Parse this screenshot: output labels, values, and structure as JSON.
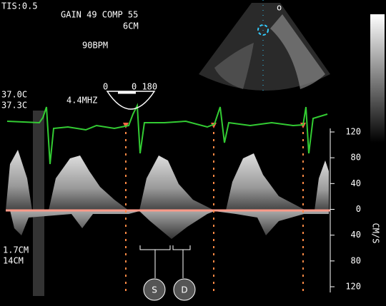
{
  "header": {
    "tis": "TIS:0.5",
    "gain": "GAIN 49 COMP 55",
    "depth": "6CM",
    "heart_rate": "90BPM",
    "orientation_mark": "o"
  },
  "probe": {
    "angle_left": "0",
    "angle_right": "0 180",
    "frequency": "4.4MHZ",
    "temp_1": "37.0C",
    "temp_2": "37.3C"
  },
  "gate": {
    "sample_volume": "1.7CM",
    "gate_depth": "14CM"
  },
  "scale": {
    "unit": "CM/S",
    "labels": [
      "120",
      "80",
      "40",
      "0",
      "40",
      "80",
      "120"
    ]
  },
  "annotations": {
    "systolic": "S",
    "diastolic": "D"
  }
}
